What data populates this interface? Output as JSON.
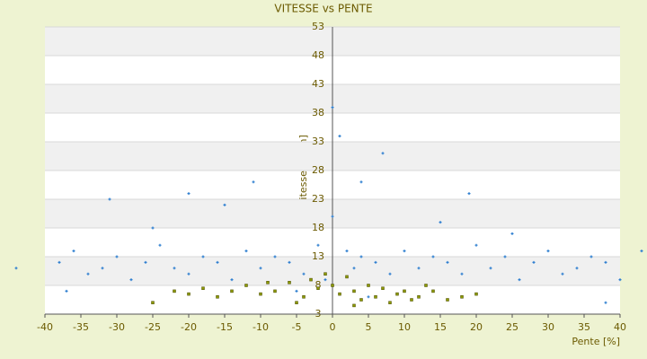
{
  "chart_data": {
    "type": "scatter",
    "title": "VITESSE vs PENTE",
    "x_label": "Pente [%]",
    "y_label": "Vitesse [km/h]",
    "xlim": [
      -40,
      40
    ],
    "xticks": [
      -40,
      -35,
      -30,
      -25,
      -20,
      -15,
      -10,
      -5,
      0,
      5,
      10,
      15,
      20,
      25,
      30,
      35,
      40
    ],
    "ylim": [
      3,
      53
    ],
    "yticks": [
      3,
      8,
      13,
      18,
      23,
      28,
      33,
      38,
      43,
      48,
      53
    ],
    "grid": true,
    "series": [
      {
        "color": "#2f7fd0",
        "x": [
          -38,
          -36,
          -34,
          -32,
          -30,
          -28,
          -26,
          -24,
          -22,
          -20,
          -18,
          -16,
          -14,
          -12,
          -10,
          -8,
          -6,
          -4,
          -2,
          -1,
          0,
          1,
          2,
          3,
          4,
          6,
          7,
          8,
          10,
          12,
          14,
          16,
          18,
          20,
          22,
          24,
          26,
          28,
          30,
          32,
          34,
          36,
          38,
          40,
          -11,
          -31,
          4,
          19,
          -20,
          -25,
          15,
          -44,
          43,
          -5,
          5,
          -15,
          25,
          -37,
          38,
          0
        ],
        "values": [
          12,
          14,
          10,
          11,
          13,
          9,
          12,
          15,
          11,
          10,
          13,
          12,
          9,
          14,
          11,
          13,
          12,
          10,
          15,
          9,
          39,
          34,
          14,
          11,
          13,
          12,
          31,
          10,
          14,
          11,
          13,
          12,
          10,
          15,
          11,
          13,
          9,
          12,
          14,
          10,
          11,
          13,
          12,
          9,
          26,
          23,
          26,
          24,
          24,
          18,
          19,
          11,
          14,
          7,
          6,
          22,
          17,
          7,
          5,
          20
        ]
      },
      {
        "color": "#8c9a00",
        "x": [
          -22,
          -20,
          -18,
          -16,
          -14,
          -12,
          -10,
          -8,
          -6,
          -4,
          -3,
          -2,
          -1,
          0,
          1,
          2,
          3,
          4,
          5,
          6,
          7,
          8,
          9,
          10,
          11,
          12,
          14,
          16,
          18,
          20,
          -25,
          -5,
          3,
          -9,
          13
        ],
        "values": [
          7,
          6.5,
          7.5,
          6,
          7,
          8,
          6.5,
          7,
          8.5,
          6,
          9,
          7.5,
          10,
          8,
          6.5,
          9.5,
          7,
          5.5,
          8,
          6,
          7.5,
          5,
          6.5,
          7,
          5.5,
          6,
          7,
          5.5,
          6,
          6.5,
          5,
          5,
          4.5,
          8.5,
          8
        ]
      }
    ]
  }
}
